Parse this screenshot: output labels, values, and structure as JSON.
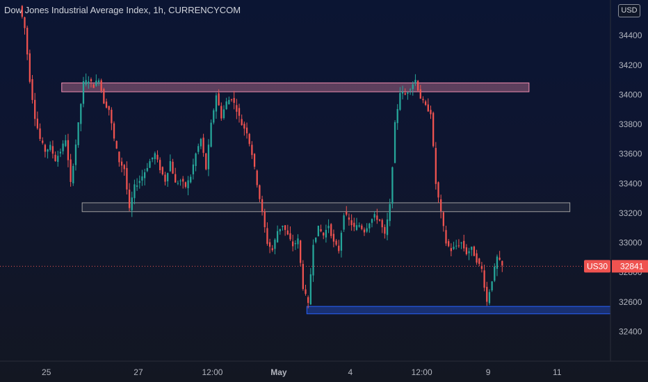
{
  "header": {
    "title": "Dow Jones Industrial Average Index, 1h, CURRENCYCOM",
    "currency_button": "USD"
  },
  "colors": {
    "up": "#26a69a",
    "down": "#ef5350",
    "resistance_zone": "#f48fb1",
    "support_zone": "#2962ff",
    "middle_zone": "#9e9e9e",
    "price_line": "#ef5350"
  },
  "chart_data": {
    "type": "candlestick",
    "symbol": "US30",
    "last_price": "32841",
    "y_ticks": [
      "34400",
      "34200",
      "34000",
      "33800",
      "33600",
      "33400",
      "33200",
      "33000",
      "32800",
      "32600",
      "32400"
    ],
    "ylim": [
      32200,
      34640
    ],
    "x_ticks": [
      "25",
      "27",
      "12:00",
      "May",
      "4",
      "12:00",
      "9",
      "11"
    ],
    "zones": [
      {
        "name": "resistance",
        "low": 34020,
        "high": 34080
      },
      {
        "name": "middle",
        "low": 33210,
        "high": 33270
      },
      {
        "name": "support",
        "low": 32520,
        "high": 32570
      }
    ],
    "price_path": [
      [
        0,
        34600
      ],
      [
        2,
        34450
      ],
      [
        4,
        34100
      ],
      [
        6,
        33850
      ],
      [
        8,
        33700
      ],
      [
        10,
        33620
      ],
      [
        12,
        33650
      ],
      [
        14,
        33560
      ],
      [
        16,
        33620
      ],
      [
        18,
        33700
      ],
      [
        20,
        33400
      ],
      [
        23,
        33800
      ],
      [
        25,
        34080
      ],
      [
        27,
        34100
      ],
      [
        29,
        34060
      ],
      [
        31,
        34110
      ],
      [
        33,
        33950
      ],
      [
        35,
        33900
      ],
      [
        37,
        33700
      ],
      [
        39,
        33550
      ],
      [
        41,
        33500
      ],
      [
        43,
        33220
      ],
      [
        45,
        33380
      ],
      [
        47,
        33420
      ],
      [
        49,
        33480
      ],
      [
        51,
        33550
      ],
      [
        53,
        33600
      ],
      [
        55,
        33500
      ],
      [
        57,
        33420
      ],
      [
        59,
        33550
      ],
      [
        61,
        33400
      ],
      [
        63,
        33420
      ],
      [
        65,
        33380
      ],
      [
        67,
        33450
      ],
      [
        69,
        33600
      ],
      [
        71,
        33700
      ],
      [
        73,
        33500
      ],
      [
        75,
        33800
      ],
      [
        77,
        34000
      ],
      [
        79,
        33850
      ],
      [
        81,
        33950
      ],
      [
        83,
        33980
      ],
      [
        85,
        33900
      ],
      [
        87,
        33800
      ],
      [
        89,
        33750
      ],
      [
        91,
        33600
      ],
      [
        93,
        33400
      ],
      [
        95,
        33200
      ],
      [
        97,
        33000
      ],
      [
        99,
        32950
      ],
      [
        101,
        33080
      ],
      [
        103,
        33120
      ],
      [
        105,
        33050
      ],
      [
        107,
        32980
      ],
      [
        109,
        33020
      ],
      [
        111,
        32700
      ],
      [
        113,
        32580
      ],
      [
        115,
        33000
      ],
      [
        117,
        33100
      ],
      [
        119,
        33050
      ],
      [
        121,
        33120
      ],
      [
        123,
        33000
      ],
      [
        125,
        32950
      ],
      [
        127,
        33200
      ],
      [
        129,
        33150
      ],
      [
        131,
        33100
      ],
      [
        133,
        33120
      ],
      [
        135,
        33080
      ],
      [
        137,
        33140
      ],
      [
        139,
        33180
      ],
      [
        141,
        33150
      ],
      [
        143,
        33050
      ],
      [
        145,
        33250
      ],
      [
        147,
        33800
      ],
      [
        149,
        34020
      ],
      [
        151,
        34000
      ],
      [
        153,
        34050
      ],
      [
        155,
        34100
      ],
      [
        157,
        33980
      ],
      [
        159,
        33920
      ],
      [
        161,
        33880
      ],
      [
        163,
        33400
      ],
      [
        165,
        33200
      ],
      [
        167,
        33000
      ],
      [
        169,
        32950
      ],
      [
        171,
        32980
      ],
      [
        173,
        33000
      ],
      [
        175,
        32930
      ],
      [
        177,
        32960
      ],
      [
        179,
        32880
      ],
      [
        181,
        32820
      ],
      [
        183,
        32600
      ],
      [
        185,
        32750
      ],
      [
        187,
        32900
      ],
      [
        189,
        32841
      ]
    ],
    "x_tick_positions": [
      10,
      46,
      75,
      101,
      129,
      157,
      183,
      210
    ]
  }
}
